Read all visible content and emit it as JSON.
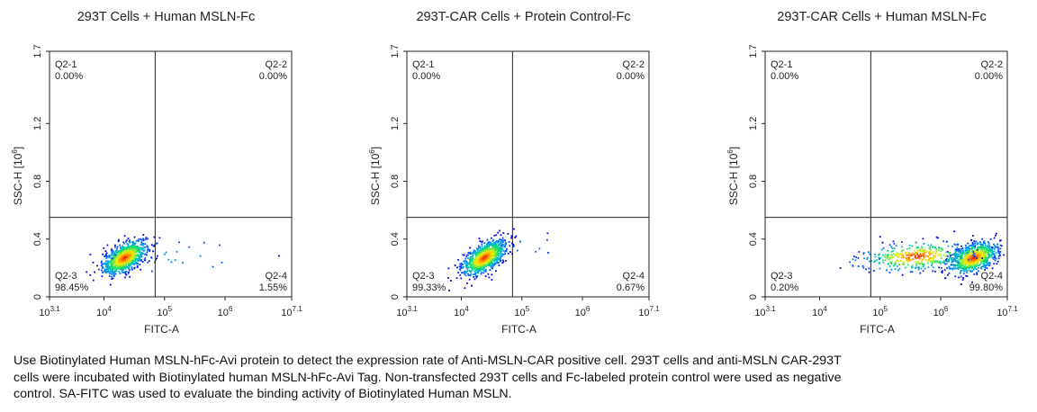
{
  "chart_data": [
    {
      "type": "scatter",
      "title": "293T Cells + Human MSLN-Fc",
      "xlabel": "FITC-A",
      "ylabel": "SSC-H [10^6]",
      "x_scale": "log",
      "xlim": [
        1258.9,
        12589254
      ],
      "x_ticks": [
        "10^3.1",
        "10^4",
        "10^5",
        "10^6",
        "10^7.1"
      ],
      "ylim": [
        0,
        1.7
      ],
      "y_ticks": [
        "0",
        "0.4",
        "0.8",
        "1.2",
        "1.7"
      ],
      "gate_x": 70000,
      "gate_y": 0.55,
      "quadrants": [
        {
          "name": "Q2-1",
          "percent": "0.00%",
          "position": "top-left"
        },
        {
          "name": "Q2-2",
          "percent": "0.00%",
          "position": "top-right"
        },
        {
          "name": "Q2-3",
          "percent": "98.45%",
          "position": "bottom-left"
        },
        {
          "name": "Q2-4",
          "percent": "1.55%",
          "position": "bottom-right"
        }
      ],
      "populations": [
        {
          "center_fitc": 22000,
          "center_ssc": 0.27,
          "spread_log": 0.18,
          "spread_ssc": 0.06,
          "count": 900,
          "tilt": 0.55
        },
        {
          "center_fitc": 200000,
          "center_ssc": 0.28,
          "spread_log": 0.6,
          "spread_ssc": 0.08,
          "count": 25,
          "tilt": 0
        }
      ]
    },
    {
      "type": "scatter",
      "title": "293T-CAR Cells + Protein Control-Fc",
      "xlabel": "FITC-A",
      "ylabel": "SSC-H [10^6]",
      "x_scale": "log",
      "xlim": [
        1258.9,
        12589254
      ],
      "x_ticks": [
        "10^3.1",
        "10^4",
        "10^5",
        "10^6",
        "10^7.1"
      ],
      "ylim": [
        0,
        1.7
      ],
      "y_ticks": [
        "0",
        "0.4",
        "0.8",
        "1.2",
        "1.7"
      ],
      "gate_x": 70000,
      "gate_y": 0.55,
      "quadrants": [
        {
          "name": "Q2-1",
          "percent": "0.00%",
          "position": "top-left"
        },
        {
          "name": "Q2-2",
          "percent": "0.00%",
          "position": "top-right"
        },
        {
          "name": "Q2-3",
          "percent": "99.33%",
          "position": "bottom-left"
        },
        {
          "name": "Q2-4",
          "percent": "0.67%",
          "position": "bottom-right"
        }
      ],
      "populations": [
        {
          "center_fitc": 24000,
          "center_ssc": 0.27,
          "spread_log": 0.18,
          "spread_ssc": 0.06,
          "count": 900,
          "tilt": 0.6
        },
        {
          "center_fitc": 110000,
          "center_ssc": 0.35,
          "spread_log": 0.25,
          "spread_ssc": 0.05,
          "count": 12,
          "tilt": 0
        }
      ]
    },
    {
      "type": "scatter",
      "title": "293T-CAR Cells + Human MSLN-Fc",
      "xlabel": "FITC-A",
      "ylabel": "SSC-H [10^6]",
      "x_scale": "log",
      "xlim": [
        1258.9,
        12589254
      ],
      "x_ticks": [
        "10^3.1",
        "10^4",
        "10^5",
        "10^6",
        "10^7.1"
      ],
      "ylim": [
        0,
        1.7
      ],
      "y_ticks": [
        "0",
        "0.4",
        "0.8",
        "1.2",
        "1.7"
      ],
      "gate_x": 70000,
      "gate_y": 0.55,
      "quadrants": [
        {
          "name": "Q2-1",
          "percent": "0.00%",
          "position": "top-left"
        },
        {
          "name": "Q2-2",
          "percent": "0.00%",
          "position": "top-right"
        },
        {
          "name": "Q2-3",
          "percent": "0.20%",
          "position": "bottom-left"
        },
        {
          "name": "Q2-4",
          "percent": "99.80%",
          "position": "bottom-right"
        }
      ],
      "populations": [
        {
          "center_fitc": 3500000,
          "center_ssc": 0.27,
          "spread_log": 0.2,
          "spread_ssc": 0.06,
          "count": 800,
          "tilt": 0.4
        },
        {
          "center_fitc": 400000,
          "center_ssc": 0.28,
          "spread_log": 0.45,
          "spread_ssc": 0.06,
          "count": 380,
          "tilt": 0.2
        },
        {
          "center_fitc": 50000,
          "center_ssc": 0.26,
          "spread_log": 0.2,
          "spread_ssc": 0.05,
          "count": 8,
          "tilt": 0
        }
      ]
    }
  ],
  "caption": [
    "Use Biotinylated Human MSLN-hFc-Avi protein to detect the expression rate of Anti-MSLN-CAR positive cell. 293T cells and anti-MSLN CAR-293T",
    "cells were incubated with Biotinylated human MSLN-hFc-Avi Tag. Non-transfected 293T cells and Fc-labeled protein control were used as negative",
    "control. SA-FITC was used to evaluate the binding activity of Biotinylated Human MSLN."
  ]
}
